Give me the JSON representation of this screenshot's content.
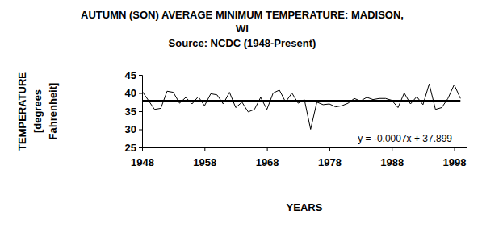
{
  "chart_data": {
    "type": "line",
    "title": "AUTUMN (SON) AVERAGE MINIMUM TEMPERATURE: MADISON, WI",
    "subtitle": "Source: NCDC (1948-Present)",
    "x_label": "YEARS",
    "y_label": "TEMPERATURE [degrees Fahrenheit]",
    "x": [
      1948,
      1949,
      1950,
      1951,
      1952,
      1953,
      1954,
      1955,
      1956,
      1957,
      1958,
      1959,
      1960,
      1961,
      1962,
      1963,
      1964,
      1965,
      1966,
      1967,
      1968,
      1969,
      1970,
      1971,
      1972,
      1973,
      1974,
      1975,
      1976,
      1977,
      1978,
      1979,
      1980,
      1981,
      1982,
      1983,
      1984,
      1985,
      1986,
      1987,
      1988,
      1989,
      1990,
      1991,
      1992,
      1993,
      1994,
      1995,
      1996,
      1997,
      1998,
      1999
    ],
    "series": [
      {
        "color": "#000000",
        "values": [
          40.5,
          38,
          35.5,
          35.8,
          40.5,
          40.2,
          37.2,
          38.8,
          37,
          39,
          36.5,
          39.8,
          39.5,
          37,
          40.2,
          36,
          37.5,
          34.8,
          35.5,
          38.8,
          35.5,
          40,
          40.8,
          37.5,
          40,
          37.2,
          38.2,
          30,
          37.5,
          36.8,
          37,
          36.2,
          36.5,
          37.2,
          38.5,
          37.8,
          38.8,
          38.2,
          38.5,
          38.5,
          38,
          36,
          40,
          37,
          39,
          36.8,
          42.5,
          35.5,
          36,
          38.5,
          42.3,
          38.5
        ]
      }
    ],
    "trendline": {
      "slope": -0.0007,
      "intercept": 37.899,
      "color": "#000000"
    },
    "annotations": [
      {
        "text": "y = -0.0007x + 37.899"
      }
    ],
    "xlim": [
      1948,
      2000
    ],
    "xticks": [
      1948,
      1958,
      1968,
      1978,
      1988,
      1998
    ],
    "ylim": [
      25,
      45
    ],
    "yticks": [
      25,
      30,
      35,
      40,
      45
    ],
    "grid": false
  }
}
